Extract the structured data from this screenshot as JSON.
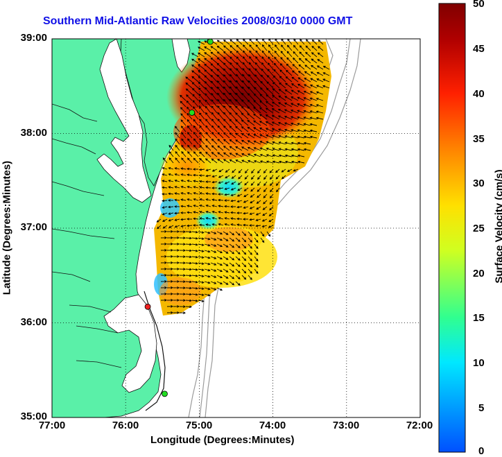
{
  "title": "Southern Mid-Atlantic Raw Velocities 2008/03/10 0000 GMT",
  "xlabel": "Longitude (Degrees:Minutes)",
  "ylabel": "Latitude (Degrees:Minutes)",
  "x_ticks": [
    "77:00",
    "76:00",
    "75:00",
    "74:00",
    "73:00",
    "72:00"
  ],
  "y_ticks": [
    "39:00",
    "38:00",
    "37:00",
    "36:00",
    "35:00"
  ],
  "colorbar": {
    "label": "Surface Velocity (cm/s)",
    "ticks": [
      "50",
      "45",
      "40",
      "35",
      "30",
      "25",
      "20",
      "15",
      "10",
      "5",
      "0"
    ],
    "range": [
      0,
      50
    ]
  },
  "colors": {
    "land": "#5af0a8",
    "water": "#ffffff",
    "title": "#1010e6",
    "station_active": "#22dd22",
    "station_inactive": "#ee2222",
    "bathymetry": "#9a9a9a"
  },
  "map": {
    "lon_range": [
      -77,
      -72
    ],
    "lat_range": [
      35,
      39
    ],
    "grid": "dotted",
    "stations": [
      {
        "lon": -74.85,
        "lat": 38.97,
        "status": "active"
      },
      {
        "lon": -75.1,
        "lat": 38.22,
        "status": "active"
      },
      {
        "lon": -75.7,
        "lat": 36.17,
        "status": "inactive"
      },
      {
        "lon": -75.47,
        "lat": 35.25,
        "status": "active"
      }
    ]
  }
}
